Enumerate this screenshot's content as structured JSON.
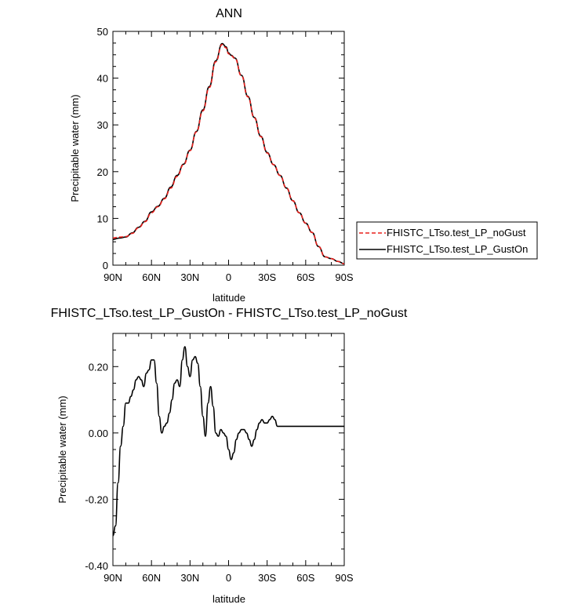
{
  "chart_data": [
    {
      "type": "line",
      "title": "ANN",
      "xlabel": "latitude",
      "ylabel": "Precipitable water (mm)",
      "xlim": [
        90,
        -90
      ],
      "ylim": [
        0,
        50
      ],
      "x_ticks": [
        90,
        60,
        30,
        0,
        -30,
        -60,
        -90
      ],
      "x_tick_labels": [
        "90N",
        "60N",
        "30N",
        "0",
        "30S",
        "60S",
        "90S"
      ],
      "y_ticks": [
        0,
        10,
        20,
        30,
        40,
        50
      ],
      "y_tick_labels": [
        "0",
        "10",
        "20",
        "30",
        "40",
        "50"
      ],
      "legend_position": "right-bottom-outside",
      "series": [
        {
          "name": "FHISTC_LTso.test_LP_noGust",
          "color": "#e8201c",
          "dash": "dashed",
          "x": [
            90,
            85,
            80,
            75,
            70,
            65,
            60,
            55,
            50,
            45,
            40,
            35,
            30,
            25,
            20,
            15,
            10,
            5,
            2,
            0,
            -2,
            -5,
            -10,
            -15,
            -20,
            -25,
            -30,
            -35,
            -40,
            -45,
            -50,
            -55,
            -60,
            -65,
            -70,
            -75,
            -80,
            -85,
            -90
          ],
          "y": [
            5.8,
            6.0,
            6.1,
            6.8,
            8.0,
            9.3,
            11.2,
            12.5,
            14.2,
            16.5,
            19.0,
            21.5,
            24.5,
            28.5,
            33.0,
            38.0,
            43.5,
            47.2,
            46.5,
            45.2,
            44.8,
            44.2,
            40.5,
            36.0,
            31.5,
            27.5,
            24.0,
            21.5,
            19.2,
            16.5,
            13.8,
            11.2,
            9.0,
            7.0,
            4.0,
            1.8,
            1.4,
            0.8,
            0.3
          ]
        },
        {
          "name": "FHISTC_LTso.test_LP_GustOn",
          "color": "#000000",
          "dash": "solid",
          "x": [
            90,
            85,
            80,
            75,
            70,
            65,
            60,
            55,
            50,
            45,
            40,
            35,
            30,
            25,
            20,
            15,
            10,
            5,
            2,
            0,
            -2,
            -5,
            -10,
            -15,
            -20,
            -25,
            -30,
            -35,
            -40,
            -45,
            -50,
            -55,
            -60,
            -65,
            -70,
            -75,
            -80,
            -85,
            -90
          ],
          "y": [
            5.5,
            5.8,
            6.0,
            6.9,
            8.1,
            9.4,
            11.4,
            12.6,
            14.3,
            16.7,
            19.2,
            21.6,
            24.6,
            28.6,
            33.2,
            38.2,
            43.7,
            47.4,
            46.7,
            45.4,
            44.9,
            44.3,
            40.6,
            36.1,
            31.6,
            27.6,
            24.1,
            21.5,
            19.2,
            16.5,
            13.8,
            11.2,
            9.0,
            7.0,
            4.0,
            1.8,
            1.4,
            0.8,
            0.3
          ]
        }
      ]
    },
    {
      "type": "line",
      "title": "FHISTC_LTso.test_LP_GustOn - FHISTC_LTso.test_LP_noGust",
      "xlabel": "latitude",
      "ylabel": "Precipitable water (mm)",
      "xlim": [
        90,
        -90
      ],
      "ylim": [
        -0.4,
        0.3
      ],
      "x_ticks": [
        90,
        60,
        30,
        0,
        -30,
        -60,
        -90
      ],
      "x_tick_labels": [
        "90N",
        "60N",
        "30N",
        "0",
        "30S",
        "60S",
        "90S"
      ],
      "y_ticks": [
        -0.4,
        -0.2,
        0.0,
        0.2
      ],
      "y_tick_labels": [
        "-0.40",
        "-0.20",
        "0.00",
        "0.20"
      ],
      "series": [
        {
          "color": "#000000",
          "dash": "solid",
          "x": [
            90,
            88,
            86,
            84,
            82,
            80,
            78,
            76,
            74,
            72,
            70,
            68,
            66,
            64,
            62,
            60,
            58,
            56,
            54,
            52,
            50,
            48,
            46,
            44,
            42,
            40,
            38,
            36,
            34,
            32,
            30,
            28,
            26,
            24,
            22,
            20,
            18,
            16,
            14,
            12,
            10,
            8,
            6,
            4,
            2,
            0,
            -2,
            -4,
            -6,
            -8,
            -10,
            -12,
            -14,
            -16,
            -18,
            -20,
            -22,
            -24,
            -26,
            -28,
            -30,
            -32,
            -34,
            -36,
            -38,
            -40,
            -42,
            -44,
            -46,
            -48,
            -50,
            -52,
            -54,
            -56,
            -58,
            -60,
            -62,
            -64,
            -66,
            -68,
            -70,
            -72,
            -74,
            -76,
            -78,
            -80,
            -82,
            -84,
            -86,
            -88,
            -90
          ],
          "y": [
            -0.31,
            -0.28,
            -0.15,
            -0.04,
            0.02,
            0.09,
            0.09,
            0.11,
            0.13,
            0.16,
            0.17,
            0.16,
            0.14,
            0.18,
            0.19,
            0.22,
            0.22,
            0.15,
            0.05,
            0.0,
            0.02,
            0.03,
            0.06,
            0.1,
            0.15,
            0.16,
            0.14,
            0.22,
            0.26,
            0.2,
            0.17,
            0.22,
            0.23,
            0.21,
            0.14,
            0.05,
            -0.01,
            0.09,
            0.14,
            0.08,
            0.0,
            -0.01,
            0.01,
            0.0,
            -0.01,
            -0.05,
            -0.08,
            -0.06,
            -0.02,
            0.0,
            0.01,
            0.01,
            0.0,
            -0.02,
            -0.04,
            -0.02,
            0.01,
            0.03,
            0.04,
            0.03,
            0.03,
            0.04,
            0.05,
            0.04,
            0.02,
            0.02,
            0.02,
            0.02,
            0.02,
            0.02,
            0.02,
            0.02,
            0.02,
            0.02,
            0.02,
            0.02,
            0.02,
            0.02,
            0.02,
            0.02,
            0.02,
            0.02,
            0.02,
            0.02,
            0.02,
            0.02,
            0.02,
            0.02,
            0.02,
            0.02,
            0.02
          ]
        }
      ]
    }
  ]
}
